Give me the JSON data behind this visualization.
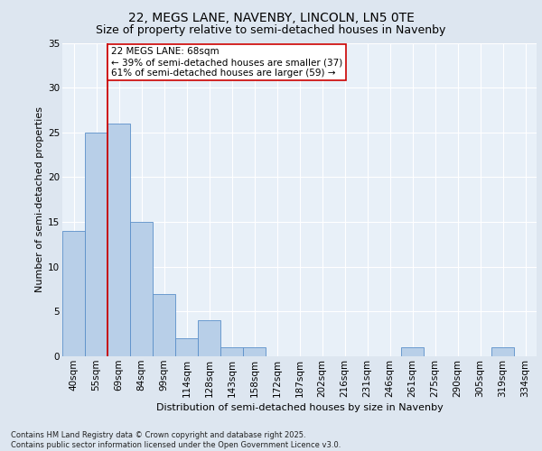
{
  "title_line1": "22, MEGS LANE, NAVENBY, LINCOLN, LN5 0TE",
  "title_line2": "Size of property relative to semi-detached houses in Navenby",
  "xlabel": "Distribution of semi-detached houses by size in Navenby",
  "ylabel": "Number of semi-detached properties",
  "categories": [
    "40sqm",
    "55sqm",
    "69sqm",
    "84sqm",
    "99sqm",
    "114sqm",
    "128sqm",
    "143sqm",
    "158sqm",
    "172sqm",
    "187sqm",
    "202sqm",
    "216sqm",
    "231sqm",
    "246sqm",
    "261sqm",
    "275sqm",
    "290sqm",
    "305sqm",
    "319sqm",
    "334sqm"
  ],
  "values": [
    14,
    25,
    26,
    15,
    7,
    2,
    4,
    1,
    1,
    0,
    0,
    0,
    0,
    0,
    0,
    1,
    0,
    0,
    0,
    1,
    0
  ],
  "bar_color": "#b8cfe8",
  "bar_edge_color": "#5b8fc9",
  "highlight_bar_index": 2,
  "highlight_color": "#cc0000",
  "annotation_text": "22 MEGS LANE: 68sqm\n← 39% of semi-detached houses are smaller (37)\n61% of semi-detached houses are larger (59) →",
  "ylim": [
    0,
    35
  ],
  "yticks": [
    0,
    5,
    10,
    15,
    20,
    25,
    30,
    35
  ],
  "background_color": "#dde6f0",
  "plot_bg_color": "#e8f0f8",
  "footer_text": "Contains HM Land Registry data © Crown copyright and database right 2025.\nContains public sector information licensed under the Open Government Licence v3.0.",
  "grid_color": "#ffffff",
  "annotation_box_color": "#ffffff",
  "annotation_box_edge": "#cc0000",
  "title1_fontsize": 10,
  "title2_fontsize": 9,
  "axis_label_fontsize": 8,
  "tick_fontsize": 7.5,
  "footer_fontsize": 6,
  "annotation_fontsize": 7.5
}
